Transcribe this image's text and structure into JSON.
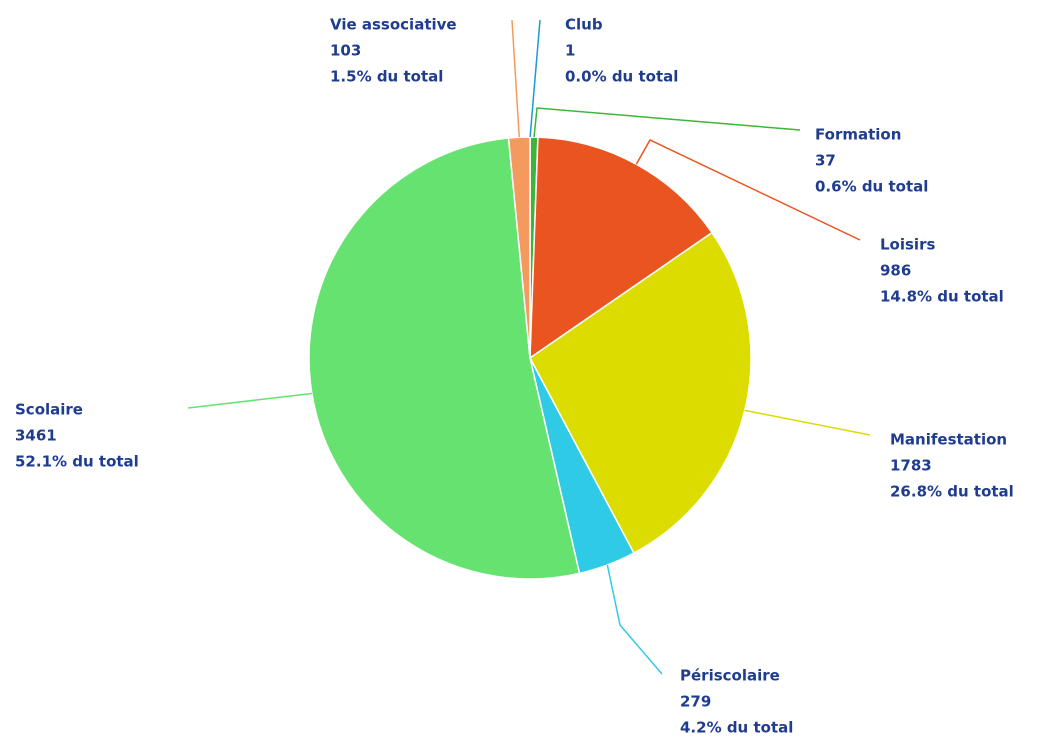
{
  "chart_data": {
    "type": "pie",
    "categories": [
      "Club",
      "Formation",
      "Loisirs",
      "Manifestation",
      "Périscolaire",
      "Scolaire",
      "Vie associative"
    ],
    "values": [
      1,
      37,
      986,
      1783,
      279,
      3461,
      103
    ],
    "percent_labels": [
      "0.0% du total",
      "0.6% du total",
      "14.8% du total",
      "26.8% du total",
      "4.2% du total",
      "52.1% du total",
      "1.5% du total"
    ],
    "colors": [
      "#1a9ad6",
      "#3db53a",
      "#ea5420",
      "#dcdc00",
      "#2fcbe6",
      "#66e270",
      "#f49a5e"
    ]
  }
}
